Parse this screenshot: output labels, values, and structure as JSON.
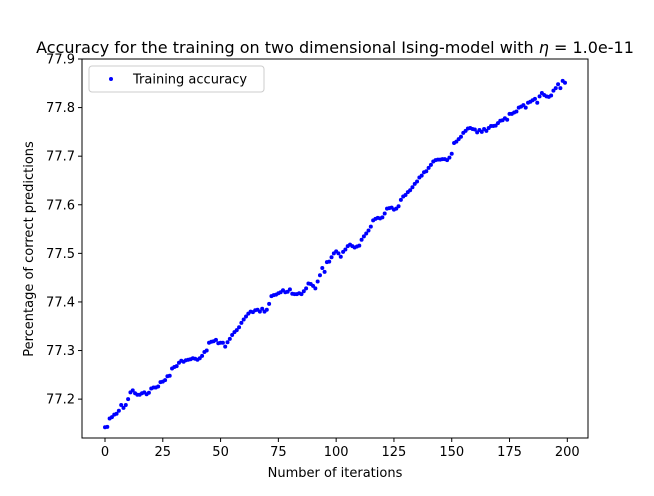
{
  "chart_data": {
    "type": "scatter",
    "title_prefix": "Accuracy for the training on two dimensional Ising-model with ",
    "title_symbol": "η",
    "title_suffix": " = 1.0e-11",
    "xlabel": "Number of iterations",
    "ylabel": "Percentage of correct predictions",
    "xlim": [
      -9.95,
      208.95
    ],
    "ylim": [
      77.12,
      77.9
    ],
    "x_ticks": [
      0,
      25,
      50,
      75,
      100,
      125,
      150,
      175,
      200
    ],
    "y_ticks": [
      77.2,
      77.3,
      77.4,
      77.5,
      77.6,
      77.7,
      77.8,
      77.9
    ],
    "grid": false,
    "legend_position": "top-left",
    "series": [
      {
        "name": "Training accuracy",
        "color": "#0000ff",
        "marker": "dot",
        "x_start": 0,
        "x_step": 1,
        "values": [
          77.142,
          77.143,
          77.16,
          77.163,
          77.168,
          77.17,
          77.176,
          77.188,
          77.182,
          77.188,
          77.2,
          77.214,
          77.218,
          77.212,
          77.209,
          77.209,
          77.212,
          77.214,
          77.21,
          77.213,
          77.222,
          77.224,
          77.224,
          77.226,
          77.235,
          77.236,
          77.239,
          77.247,
          77.248,
          77.263,
          77.266,
          77.268,
          77.275,
          77.279,
          77.277,
          77.28,
          77.281,
          77.282,
          77.284,
          77.283,
          77.281,
          77.284,
          77.289,
          77.297,
          77.3,
          77.316,
          77.318,
          77.319,
          77.322,
          77.315,
          77.316,
          77.316,
          77.308,
          77.317,
          77.324,
          77.332,
          77.338,
          77.342,
          77.348,
          77.357,
          77.364,
          77.37,
          77.376,
          77.38,
          77.379,
          77.383,
          77.384,
          77.38,
          77.386,
          77.38,
          77.384,
          77.396,
          77.412,
          77.414,
          77.415,
          77.418,
          77.42,
          77.424,
          77.42,
          77.421,
          77.426,
          77.417,
          77.416,
          77.416,
          77.418,
          77.416,
          77.422,
          77.428,
          77.438,
          77.437,
          77.433,
          77.428,
          77.442,
          77.455,
          77.47,
          77.462,
          77.482,
          77.483,
          77.492,
          77.5,
          77.504,
          77.5,
          77.493,
          77.503,
          77.508,
          77.515,
          77.518,
          77.515,
          77.512,
          77.514,
          77.516,
          77.528,
          77.535,
          77.541,
          77.547,
          77.555,
          77.568,
          77.571,
          77.573,
          77.572,
          77.574,
          77.582,
          77.592,
          77.593,
          77.594,
          77.59,
          77.592,
          77.597,
          77.61,
          77.617,
          77.62,
          77.626,
          77.63,
          77.636,
          77.643,
          77.648,
          77.656,
          77.66,
          77.667,
          77.669,
          77.676,
          77.682,
          77.689,
          77.692,
          77.693,
          77.693,
          77.694,
          77.694,
          77.692,
          77.697,
          77.705,
          77.727,
          77.73,
          77.735,
          77.74,
          77.748,
          77.752,
          77.757,
          77.758,
          77.756,
          77.755,
          77.749,
          77.754,
          77.75,
          77.756,
          77.752,
          77.758,
          77.762,
          77.762,
          77.763,
          77.768,
          77.773,
          77.774,
          77.778,
          77.775,
          77.787,
          77.787,
          77.79,
          77.792,
          77.8,
          77.802,
          77.805,
          77.8,
          77.81,
          77.812,
          77.815,
          77.818,
          77.81,
          77.823,
          77.83,
          77.826,
          77.823,
          77.822,
          77.825,
          77.835,
          77.84,
          77.848,
          77.84,
          77.855,
          77.851
        ]
      }
    ]
  }
}
